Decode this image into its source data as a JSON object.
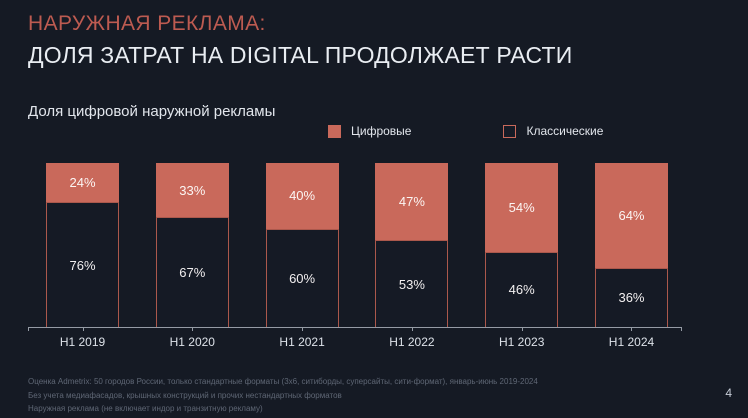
{
  "slide": {
    "kicker": "НАРУЖНАЯ РЕКЛАМА:",
    "title": "ДОЛЯ ЗАТРАТ НА DIGITAL ПРОДОЛЖАЕТ РАСТИ",
    "chart_caption": "Доля цифровой наружной рекламы",
    "page_number": "4"
  },
  "footnotes": [
    "Оценка Admetrix: 50 городов России, только стандартные форматы (3х6, ситиборды, суперсайты, сити-формат), январь-июнь 2019-2024",
    "Без учета медиафасадов, крышных конструкций и прочих нестандартных форматов",
    "Наружная реклама (не включает индор и транзитную рекламу)"
  ],
  "colors": {
    "background": "#151a24",
    "accent_salmon": "#c9695b",
    "accent_border": "#ab584c",
    "kicker_red": "#bd5b51",
    "text_white": "#e9edf2",
    "muted_gray": "#5f6775",
    "axis_gray": "#959ba5"
  },
  "chart_data": {
    "type": "bar",
    "stacked": true,
    "title": "Доля цифровой наружной рекламы",
    "categories": [
      "H1 2019",
      "H1 2020",
      "H1 2021",
      "H1 2022",
      "H1 2023",
      "H1 2024"
    ],
    "series": [
      {
        "name": "Цифровые",
        "values": [
          24,
          33,
          40,
          47,
          54,
          64
        ],
        "color": "#c9695b",
        "style": "filled"
      },
      {
        "name": "Классические",
        "values": [
          76,
          67,
          60,
          53,
          46,
          36
        ],
        "color": "#151a25",
        "style": "outlined"
      }
    ],
    "value_suffix": "%",
    "ylim": [
      0,
      100
    ],
    "xlabel": "",
    "ylabel": "",
    "grid": false,
    "legend_position": "top"
  }
}
